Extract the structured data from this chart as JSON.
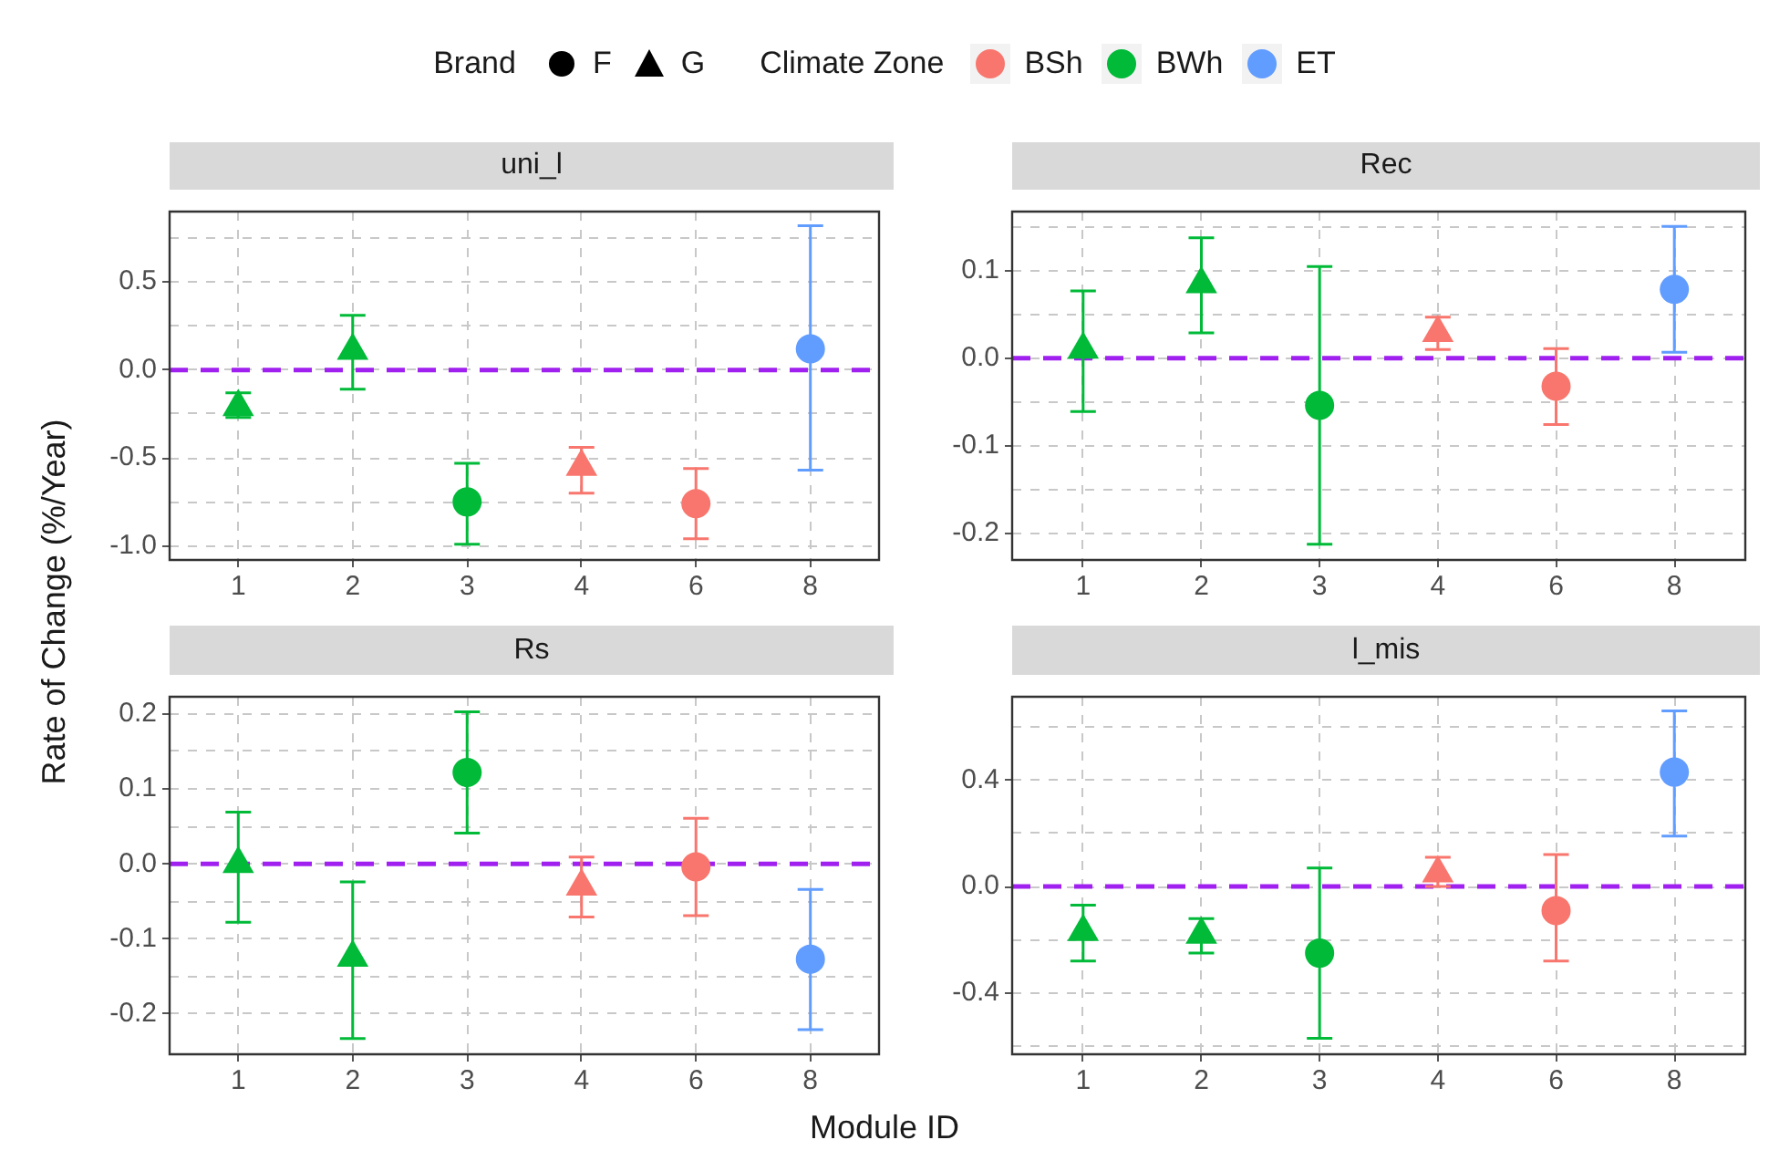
{
  "chart_data": [
    {
      "type": "scatter",
      "title": "uni_l",
      "xlabel": "Module ID",
      "ylabel": "Rate of Change (%/Year)",
      "legend": "top",
      "legend_title": "Climate Zone",
      "annotations": [
        "Brand",
        "F",
        "G"
      ],
      "grid": true,
      "categories": [
        "1",
        "2",
        "3",
        "4",
        "6",
        "8"
      ],
      "ylim": [
        -1.08,
        0.9
      ],
      "yticks": [
        {
          "value": -1,
          "label": "-1.0"
        },
        {
          "value": -0.75,
          "label": null
        },
        -0.5,
        {
          "value": -0.25,
          "label": null
        },
        {
          "value": 0,
          "label": "0.0"
        },
        {
          "value": 0.25,
          "label": null
        },
        0.5,
        {
          "value": 0.75,
          "label": null
        }
      ],
      "ref_lines": [
        {
          "axis": "y",
          "value": 0,
          "label": null,
          "color": "#a020f0",
          "line_style": "dashed"
        }
      ],
      "series": [
        {
          "name": "BSh",
          "color": "#f8766d",
          "marker": "circle",
          "values": [
            null,
            null,
            null,
            null,
            -0.76,
            null
          ],
          "errors": [
            null,
            null,
            null,
            null,
            [
              -0.96,
              -0.56
            ],
            null
          ]
        },
        {
          "color": "#f8766d",
          "marker": "triangle",
          "values": [
            null,
            null,
            null,
            -0.55,
            null,
            null
          ],
          "errors": [
            null,
            null,
            null,
            [
              -0.7,
              -0.44
            ],
            null,
            null
          ]
        },
        {
          "name": "BWh",
          "color": "#00ba38",
          "marker": "circle",
          "values": [
            null,
            null,
            -0.75,
            null,
            null,
            null
          ],
          "errors": [
            null,
            null,
            [
              -0.99,
              -0.53
            ],
            null,
            null,
            null
          ]
        },
        {
          "color": "#00ba38",
          "marker": "triangle",
          "values": [
            -0.21,
            0.11,
            null,
            null,
            null,
            null
          ],
          "errors": [
            [
              -0.27,
              -0.13
            ],
            [
              -0.11,
              0.31
            ],
            null,
            null,
            null,
            null
          ]
        },
        {
          "name": "ET",
          "color": "#619cff",
          "marker": "circle",
          "values": [
            null,
            null,
            null,
            null,
            null,
            0.12
          ],
          "errors": [
            null,
            null,
            null,
            null,
            null,
            [
              -0.57,
              0.82
            ]
          ]
        }
      ]
    },
    {
      "type": "scatter",
      "title": "Rec",
      "grid": true,
      "categories": [
        "1",
        "2",
        "3",
        "4",
        "6",
        "8"
      ],
      "ylim": [
        -0.231,
        0.168
      ],
      "yticks": [
        -0.2,
        {
          "value": -0.15,
          "label": null
        },
        -0.1,
        {
          "value": -0.05,
          "label": null
        },
        {
          "value": 0,
          "label": "0.0"
        },
        {
          "value": 0.05,
          "label": null
        },
        0.1,
        {
          "value": 0.15,
          "label": null
        }
      ],
      "ref_lines": [
        {
          "axis": "y",
          "value": 0,
          "label": null,
          "color": "#a020f0",
          "line_style": "dashed"
        }
      ],
      "series": [
        {
          "color": "#f8766d",
          "marker": "circle",
          "values": [
            null,
            null,
            null,
            null,
            -0.032,
            null
          ],
          "errors": [
            null,
            null,
            null,
            null,
            [
              -0.076,
              0.011
            ],
            null
          ]
        },
        {
          "color": "#f8766d",
          "marker": "triangle",
          "values": [
            null,
            null,
            null,
            0.029,
            null,
            null
          ],
          "errors": [
            null,
            null,
            null,
            [
              0.01,
              0.047
            ],
            null,
            null
          ]
        },
        {
          "color": "#00ba38",
          "marker": "circle",
          "values": [
            null,
            null,
            -0.054,
            null,
            null,
            null
          ],
          "errors": [
            null,
            null,
            [
              -0.213,
              0.105
            ],
            null,
            null,
            null
          ]
        },
        {
          "color": "#00ba38",
          "marker": "triangle",
          "values": [
            0.01,
            0.085,
            null,
            null,
            null,
            null
          ],
          "errors": [
            [
              -0.061,
              0.077
            ],
            [
              0.029,
              0.138
            ],
            null,
            null,
            null,
            null
          ]
        },
        {
          "color": "#619cff",
          "marker": "circle",
          "values": [
            null,
            null,
            null,
            null,
            null,
            0.079
          ],
          "errors": [
            null,
            null,
            null,
            null,
            null,
            [
              0.007,
              0.151
            ]
          ]
        }
      ]
    },
    {
      "type": "scatter",
      "title": "Rs",
      "grid": true,
      "categories": [
        "1",
        "2",
        "3",
        "4",
        "6",
        "8"
      ],
      "ylim": [
        -0.254,
        0.223
      ],
      "yticks": [
        -0.2,
        {
          "value": -0.15,
          "label": null
        },
        -0.1,
        {
          "value": -0.05,
          "label": null
        },
        {
          "value": 0,
          "label": "0.0"
        },
        {
          "value": 0.05,
          "label": null
        },
        0.1,
        {
          "value": 0.15,
          "label": null
        },
        0.2
      ],
      "ref_lines": [
        {
          "axis": "y",
          "value": 0,
          "label": null,
          "color": "#a020f0",
          "line_style": "dashed"
        }
      ],
      "series": [
        {
          "color": "#f8766d",
          "marker": "circle",
          "values": [
            null,
            null,
            null,
            null,
            -0.004,
            null
          ],
          "errors": [
            null,
            null,
            null,
            null,
            [
              -0.069,
              0.061
            ],
            null
          ]
        },
        {
          "color": "#f8766d",
          "marker": "triangle",
          "values": [
            null,
            null,
            null,
            -0.03,
            null,
            null
          ],
          "errors": [
            null,
            null,
            null,
            [
              -0.071,
              0.009
            ],
            null,
            null
          ]
        },
        {
          "color": "#00ba38",
          "marker": "circle",
          "values": [
            null,
            null,
            0.122,
            null,
            null,
            null
          ],
          "errors": [
            null,
            null,
            [
              0.041,
              0.203
            ],
            null,
            null,
            null
          ]
        },
        {
          "color": "#00ba38",
          "marker": "triangle",
          "values": [
            0.0,
            -0.125,
            null,
            null,
            null,
            null
          ],
          "errors": [
            [
              -0.078,
              0.069
            ],
            [
              -0.233,
              -0.024
            ],
            null,
            null,
            null,
            null
          ]
        },
        {
          "color": "#619cff",
          "marker": "circle",
          "values": [
            null,
            null,
            null,
            null,
            null,
            -0.127
          ],
          "errors": [
            null,
            null,
            null,
            null,
            null,
            [
              -0.221,
              -0.034
            ]
          ]
        }
      ]
    },
    {
      "type": "scatter",
      "title": "l_mis",
      "grid": true,
      "categories": [
        "1",
        "2",
        "3",
        "4",
        "6",
        "8"
      ],
      "ylim": [
        -0.63,
        0.713
      ],
      "yticks": [
        {
          "value": -0.6,
          "label": null
        },
        -0.4,
        {
          "value": -0.2,
          "label": null
        },
        {
          "value": 0,
          "label": "0.0"
        },
        {
          "value": 0.2,
          "label": null
        },
        0.4,
        {
          "value": 0.6,
          "label": null
        }
      ],
      "ref_lines": [
        {
          "axis": "y",
          "value": 0,
          "label": null,
          "color": "#a020f0",
          "line_style": "dashed"
        }
      ],
      "series": [
        {
          "color": "#f8766d",
          "marker": "circle",
          "values": [
            null,
            null,
            null,
            null,
            -0.09,
            null
          ],
          "errors": [
            null,
            null,
            null,
            null,
            [
              -0.28,
              0.12
            ],
            null
          ]
        },
        {
          "color": "#f8766d",
          "marker": "triangle",
          "values": [
            null,
            null,
            null,
            0.05,
            null,
            null
          ],
          "errors": [
            null,
            null,
            null,
            [
              0.0,
              0.11
            ],
            null,
            null
          ]
        },
        {
          "color": "#00ba38",
          "marker": "circle",
          "values": [
            null,
            null,
            -0.25,
            null,
            null,
            null
          ],
          "errors": [
            null,
            null,
            [
              -0.57,
              0.07
            ],
            null,
            null,
            null
          ]
        },
        {
          "color": "#00ba38",
          "marker": "triangle",
          "values": [
            -0.17,
            -0.18,
            null,
            null,
            null,
            null
          ],
          "errors": [
            [
              -0.28,
              -0.07
            ],
            [
              -0.25,
              -0.12
            ],
            null,
            null,
            null,
            null
          ]
        },
        {
          "color": "#619cff",
          "marker": "circle",
          "values": [
            null,
            null,
            null,
            null,
            null,
            0.43
          ],
          "errors": [
            null,
            null,
            null,
            null,
            null,
            [
              0.19,
              0.66
            ]
          ]
        }
      ]
    }
  ]
}
